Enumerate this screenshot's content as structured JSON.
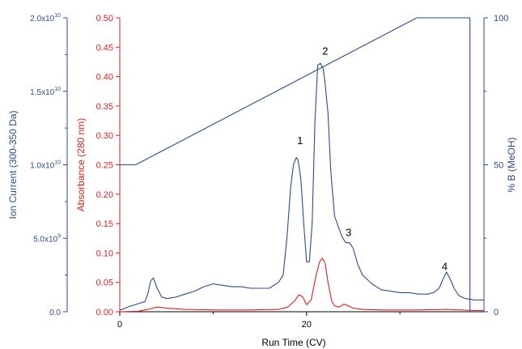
{
  "chart_data": {
    "type": "line",
    "x_axis": {
      "label": "Run Time (CV)",
      "ticks": [
        0,
        20
      ],
      "range": [
        0,
        39
      ],
      "minor_ticks": [
        10,
        30
      ]
    },
    "left_axis_ion_current": {
      "label": "Ion Current (300-350 Da)",
      "color": "#2e4a8c",
      "range": [
        0.0,
        20000000000.0
      ],
      "ticks": [
        {
          "value": 0.0,
          "label": "0.0"
        },
        {
          "value": 5000000000.0,
          "label": "5.0x10",
          "exp": "9"
        },
        {
          "value": 10000000000.0,
          "label": "1.0x10",
          "exp": "10"
        },
        {
          "value": 15000000000.0,
          "label": "1.5x10",
          "exp": "10"
        },
        {
          "value": 20000000000.0,
          "label": "2.0x10",
          "exp": "10"
        }
      ]
    },
    "left_axis_absorbance": {
      "label": "Absorbance (280 nm)",
      "color": "#dd1f1f",
      "range": [
        0.0,
        0.5
      ],
      "ticks": [
        "0.00",
        "0.05",
        "0.10",
        "0.15",
        "0.20",
        "0.25",
        "0.30",
        "0.35",
        "0.40",
        "0.45",
        "0.50"
      ]
    },
    "right_axis_percent_b": {
      "label": "% B (MeOH)",
      "color": "#2e4a8c",
      "range": [
        0,
        100
      ],
      "ticks": [
        {
          "value": 0,
          "label": "0"
        },
        {
          "value": 50,
          "label": "50"
        },
        {
          "value": 100,
          "label": "100"
        }
      ]
    },
    "series": [
      {
        "axis": "ion_current",
        "color": "#2e4a8c",
        "x": [
          0.0,
          1.0,
          2.0,
          2.7,
          3.0,
          3.3,
          3.6,
          4.0,
          4.5,
          5.0,
          6.0,
          7.0,
          8.0,
          9.0,
          10.0,
          11.0,
          12.0,
          13.0,
          14.0,
          15.0,
          16.0,
          17.0,
          17.5,
          17.9,
          18.3,
          18.6,
          18.9,
          19.1,
          19.4,
          19.7,
          20.0,
          20.3,
          20.6,
          20.9,
          21.2,
          21.5,
          21.8,
          22.0,
          22.3,
          22.6,
          23.0,
          23.4,
          23.8,
          24.2,
          24.6,
          25.0,
          25.5,
          26.0,
          27.0,
          28.0,
          29.0,
          30.0,
          31.0,
          32.0,
          33.0,
          33.6,
          34.2,
          34.6,
          35.0,
          35.4,
          35.8,
          36.3,
          37.0,
          38.0,
          39.0
        ],
        "y": [
          100000000.0,
          350000000.0,
          550000000.0,
          700000000.0,
          1200000000.0,
          2100000000.0,
          2300000000.0,
          1600000000.0,
          1000000000.0,
          900000000.0,
          1000000000.0,
          1200000000.0,
          1400000000.0,
          1700000000.0,
          1900000000.0,
          1800000000.0,
          1700000000.0,
          1700000000.0,
          1600000000.0,
          1600000000.0,
          1600000000.0,
          2000000000.0,
          2500000000.0,
          5000000000.0,
          8500000000.0,
          10000000000.0,
          10500000000.0,
          10300000000.0,
          9000000000.0,
          6000000000.0,
          3400000000.0,
          3400000000.0,
          6000000000.0,
          13000000000.0,
          16800000000.0,
          16900000000.0,
          16500000000.0,
          15500000000.0,
          13500000000.0,
          9500000000.0,
          6500000000.0,
          5800000000.0,
          5100000000.0,
          4700000000.0,
          4700000000.0,
          4300000000.0,
          3200000000.0,
          2500000000.0,
          1900000000.0,
          1500000000.0,
          1400000000.0,
          1300000000.0,
          1300000000.0,
          1200000000.0,
          1200000000.0,
          1300000000.0,
          1600000000.0,
          2200000000.0,
          2700000000.0,
          2200000000.0,
          1600000000.0,
          1100000000.0,
          900000000.0,
          800000000.0,
          800000000.0
        ]
      },
      {
        "axis": "absorbance",
        "color": "#dd1f1f",
        "x": [
          0.0,
          2.0,
          3.0,
          4.0,
          5.0,
          7.0,
          10.0,
          14.0,
          17.0,
          18.0,
          18.7,
          19.2,
          19.6,
          20.0,
          20.5,
          21.0,
          21.4,
          21.7,
          22.0,
          22.3,
          22.7,
          23.0,
          23.5,
          24.0,
          24.5,
          25.0,
          26.0,
          28.0,
          30.0,
          32.0,
          35.0,
          38.0,
          39.0
        ],
        "y": [
          0.0,
          0.001,
          0.004,
          0.008,
          0.006,
          0.004,
          0.003,
          0.003,
          0.004,
          0.008,
          0.018,
          0.029,
          0.025,
          0.012,
          0.02,
          0.06,
          0.085,
          0.091,
          0.082,
          0.05,
          0.018,
          0.01,
          0.008,
          0.013,
          0.01,
          0.006,
          0.004,
          0.003,
          0.003,
          0.003,
          0.004,
          0.002,
          0.002
        ]
      },
      {
        "axis": "percent_b",
        "color": "#2e4a8c",
        "x": [
          0.0,
          1.7,
          31.8,
          37.5,
          37.5
        ],
        "y": [
          50,
          50,
          100,
          100,
          0
        ]
      }
    ],
    "annotations": [
      {
        "text": "1",
        "x": 19.3,
        "y_ion": 11400000000.0
      },
      {
        "text": "2",
        "x": 22.0,
        "y_ion": 17500000000.0
      },
      {
        "text": "3",
        "x": 24.5,
        "y_ion": 5150000000.0
      },
      {
        "text": "4",
        "x": 34.8,
        "y_ion": 2850000000.0
      }
    ]
  }
}
